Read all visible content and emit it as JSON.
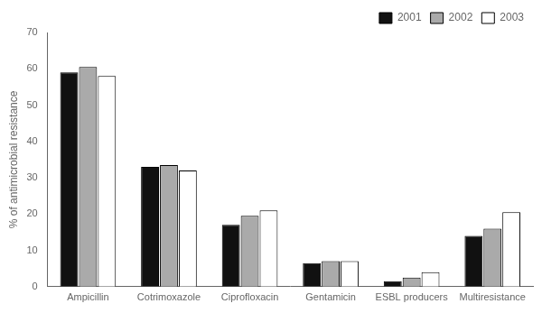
{
  "chart_data": {
    "type": "bar",
    "categories": [
      "Ampicillin",
      "Cotrimoxazole",
      "Ciprofloxacin",
      "Gentamicin",
      "ESBL producers",
      "Multiresistance"
    ],
    "series": [
      {
        "name": "2001",
        "color": "#111111",
        "values": [
          59,
          33,
          17,
          6.5,
          1.5,
          14
        ]
      },
      {
        "name": "2002",
        "color": "#aaaaaa",
        "values": [
          60.5,
          33.5,
          19.5,
          7,
          2.5,
          16
        ]
      },
      {
        "name": "2003",
        "color": "#ffffff",
        "values": [
          58,
          32,
          21,
          7,
          4,
          20.5
        ]
      }
    ],
    "ylabel": "% of antimicrobial resistance",
    "ylim": [
      0,
      70
    ],
    "yticks": [
      0,
      10,
      20,
      30,
      40,
      50,
      60,
      70
    ],
    "grid": false,
    "legend": "upper right"
  }
}
